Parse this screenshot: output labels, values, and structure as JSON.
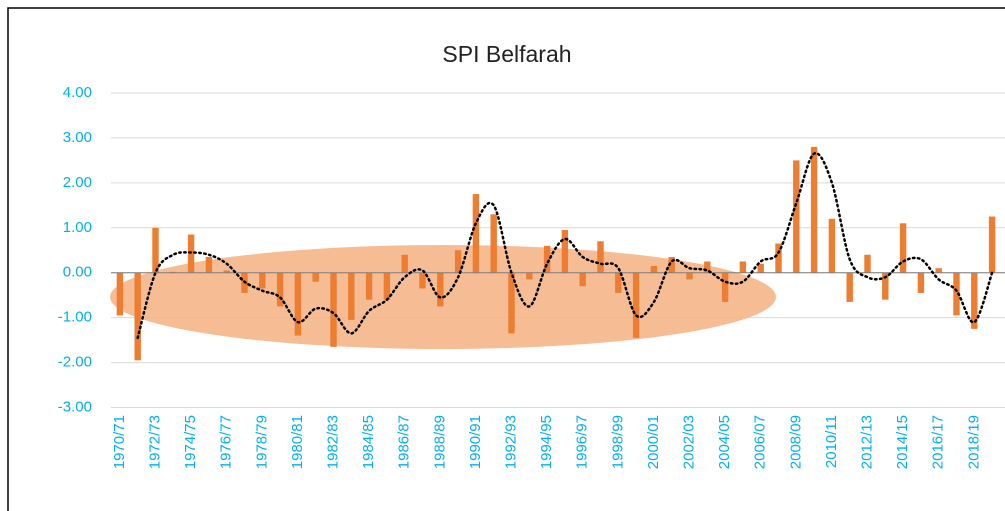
{
  "chart_data": {
    "type": "bar",
    "title": "SPI Belfarah",
    "categories": [
      "1970/71",
      null,
      "1972/73",
      null,
      "1974/75",
      null,
      "1976/77",
      null,
      "1978/79",
      null,
      "1980/81",
      null,
      "1982/83",
      null,
      "1984/85",
      null,
      "1986/87",
      null,
      "1988/89",
      null,
      "1990/91",
      null,
      "1992/93",
      null,
      "1994/95",
      null,
      "1996/97",
      null,
      "1998/99",
      null,
      "2000/01",
      null,
      "2002/03",
      null,
      "2004/05",
      null,
      "2006/07",
      null,
      "2008/09",
      null,
      "2010/11",
      null,
      "2012/13",
      null,
      "2014/15",
      null,
      "2016/17",
      null,
      "2018/19",
      null
    ],
    "values": [
      -0.95,
      -1.95,
      1.0,
      0.02,
      0.85,
      0.35,
      0.05,
      -0.45,
      -0.35,
      -0.75,
      -1.4,
      -0.2,
      -1.65,
      -1.05,
      -0.6,
      -0.6,
      0.4,
      -0.35,
      -0.75,
      0.5,
      1.75,
      1.3,
      -1.35,
      -0.15,
      0.6,
      0.95,
      -0.3,
      0.7,
      -0.45,
      -1.45,
      0.15,
      0.35,
      -0.15,
      0.25,
      -0.65,
      0.25,
      0.2,
      0.65,
      2.5,
      2.8,
      1.2,
      -0.65,
      0.4,
      -0.6,
      1.1,
      -0.45,
      0.1,
      -0.95,
      -1.25,
      1.25
    ],
    "color": "#ed7d31",
    "trend": [
      null,
      -1.45,
      0.0,
      0.4,
      0.45,
      0.4,
      0.2,
      -0.2,
      -0.4,
      -0.55,
      -1.1,
      -0.8,
      -0.9,
      -1.35,
      -0.85,
      -0.6,
      -0.1,
      0.05,
      -0.55,
      -0.1,
      1.1,
      1.5,
      0.0,
      -0.75,
      0.2,
      0.75,
      0.35,
      0.2,
      0.1,
      -0.95,
      -0.65,
      0.25,
      0.1,
      0.05,
      -0.2,
      -0.2,
      0.25,
      0.45,
      1.55,
      2.65,
      2.0,
      0.3,
      -0.1,
      -0.1,
      0.25,
      0.3,
      -0.15,
      -0.4,
      -1.1,
      0.0
    ],
    "trend_color": "#000000",
    "ylim": [
      -3,
      4
    ],
    "yticks": [
      {
        "value": -3,
        "label": "-3.00"
      },
      {
        "value": -2,
        "label": "-2.00"
      },
      {
        "value": -1,
        "label": "-1.00"
      },
      {
        "value": 0,
        "label": "0.00"
      },
      {
        "value": 1,
        "label": "1.00"
      },
      {
        "value": 2,
        "label": "2.00"
      },
      {
        "value": 3,
        "label": "3.00"
      },
      {
        "value": 4,
        "label": "4.00"
      }
    ],
    "grid": true
  }
}
